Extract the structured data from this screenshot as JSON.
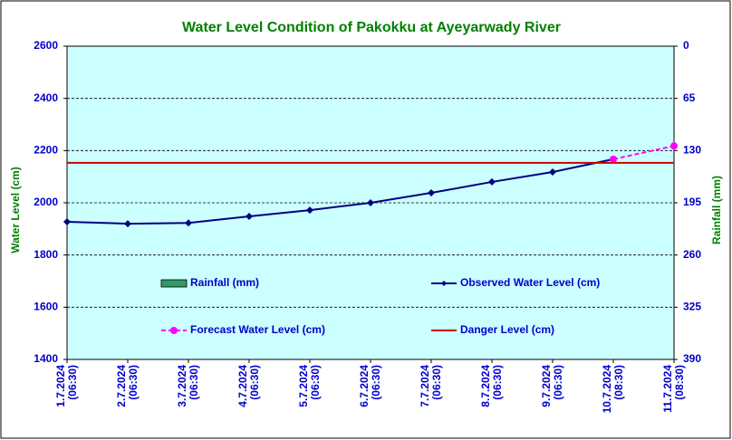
{
  "chart_data": {
    "type": "line",
    "title": "Water Level Condition of Pakokku at Ayeyarwady River",
    "y_label": "Water Level (cm)",
    "y2_label": "Rainfall (mm)",
    "categories": [
      "1.7.2024",
      "2.7.2024",
      "3.7.2024",
      "4.7.2024",
      "5.7.2024",
      "6.7.2024",
      "7.7.2024",
      "8.7.2024",
      "9.7.2024",
      "10.7.2024",
      "11.7.2024"
    ],
    "category_times": [
      "(06:30)",
      "(06:30)",
      "(06:30)",
      "(06:30)",
      "(06:30)",
      "(06:30)",
      "(06:30)",
      "(06:30)",
      "(06:30)",
      "(08:30)",
      "(08:30)"
    ],
    "ylim": [
      1400,
      2600
    ],
    "yticks": [
      1400,
      1600,
      1800,
      2000,
      2200,
      2400,
      2600
    ],
    "y2lim": [
      390,
      0
    ],
    "y2ticks": [
      0,
      65,
      130,
      195,
      260,
      325,
      390
    ],
    "grid": true,
    "series": [
      {
        "name": "Rainfall (mm)",
        "color": "#339966",
        "axis": "y2",
        "values": [
          null,
          null,
          null,
          null,
          null,
          null,
          null,
          null,
          null,
          null,
          null
        ]
      },
      {
        "name": "Observed Water Level (cm)",
        "color": "#000080",
        "values": [
          1927,
          1920,
          1923,
          1948,
          1972,
          2000,
          2038,
          2080,
          2118,
          2167,
          null
        ]
      },
      {
        "name": "Forecast Water Level (cm)",
        "color": "#ff00ff",
        "dashed": true,
        "values": [
          null,
          null,
          null,
          null,
          null,
          null,
          null,
          null,
          null,
          2167,
          2218
        ]
      },
      {
        "name": "Danger Level (cm)",
        "color": "#cc0000",
        "constant": true,
        "values": [
          2153,
          2153,
          2153,
          2153,
          2153,
          2153,
          2153,
          2153,
          2153,
          2153,
          2153
        ]
      }
    ]
  }
}
